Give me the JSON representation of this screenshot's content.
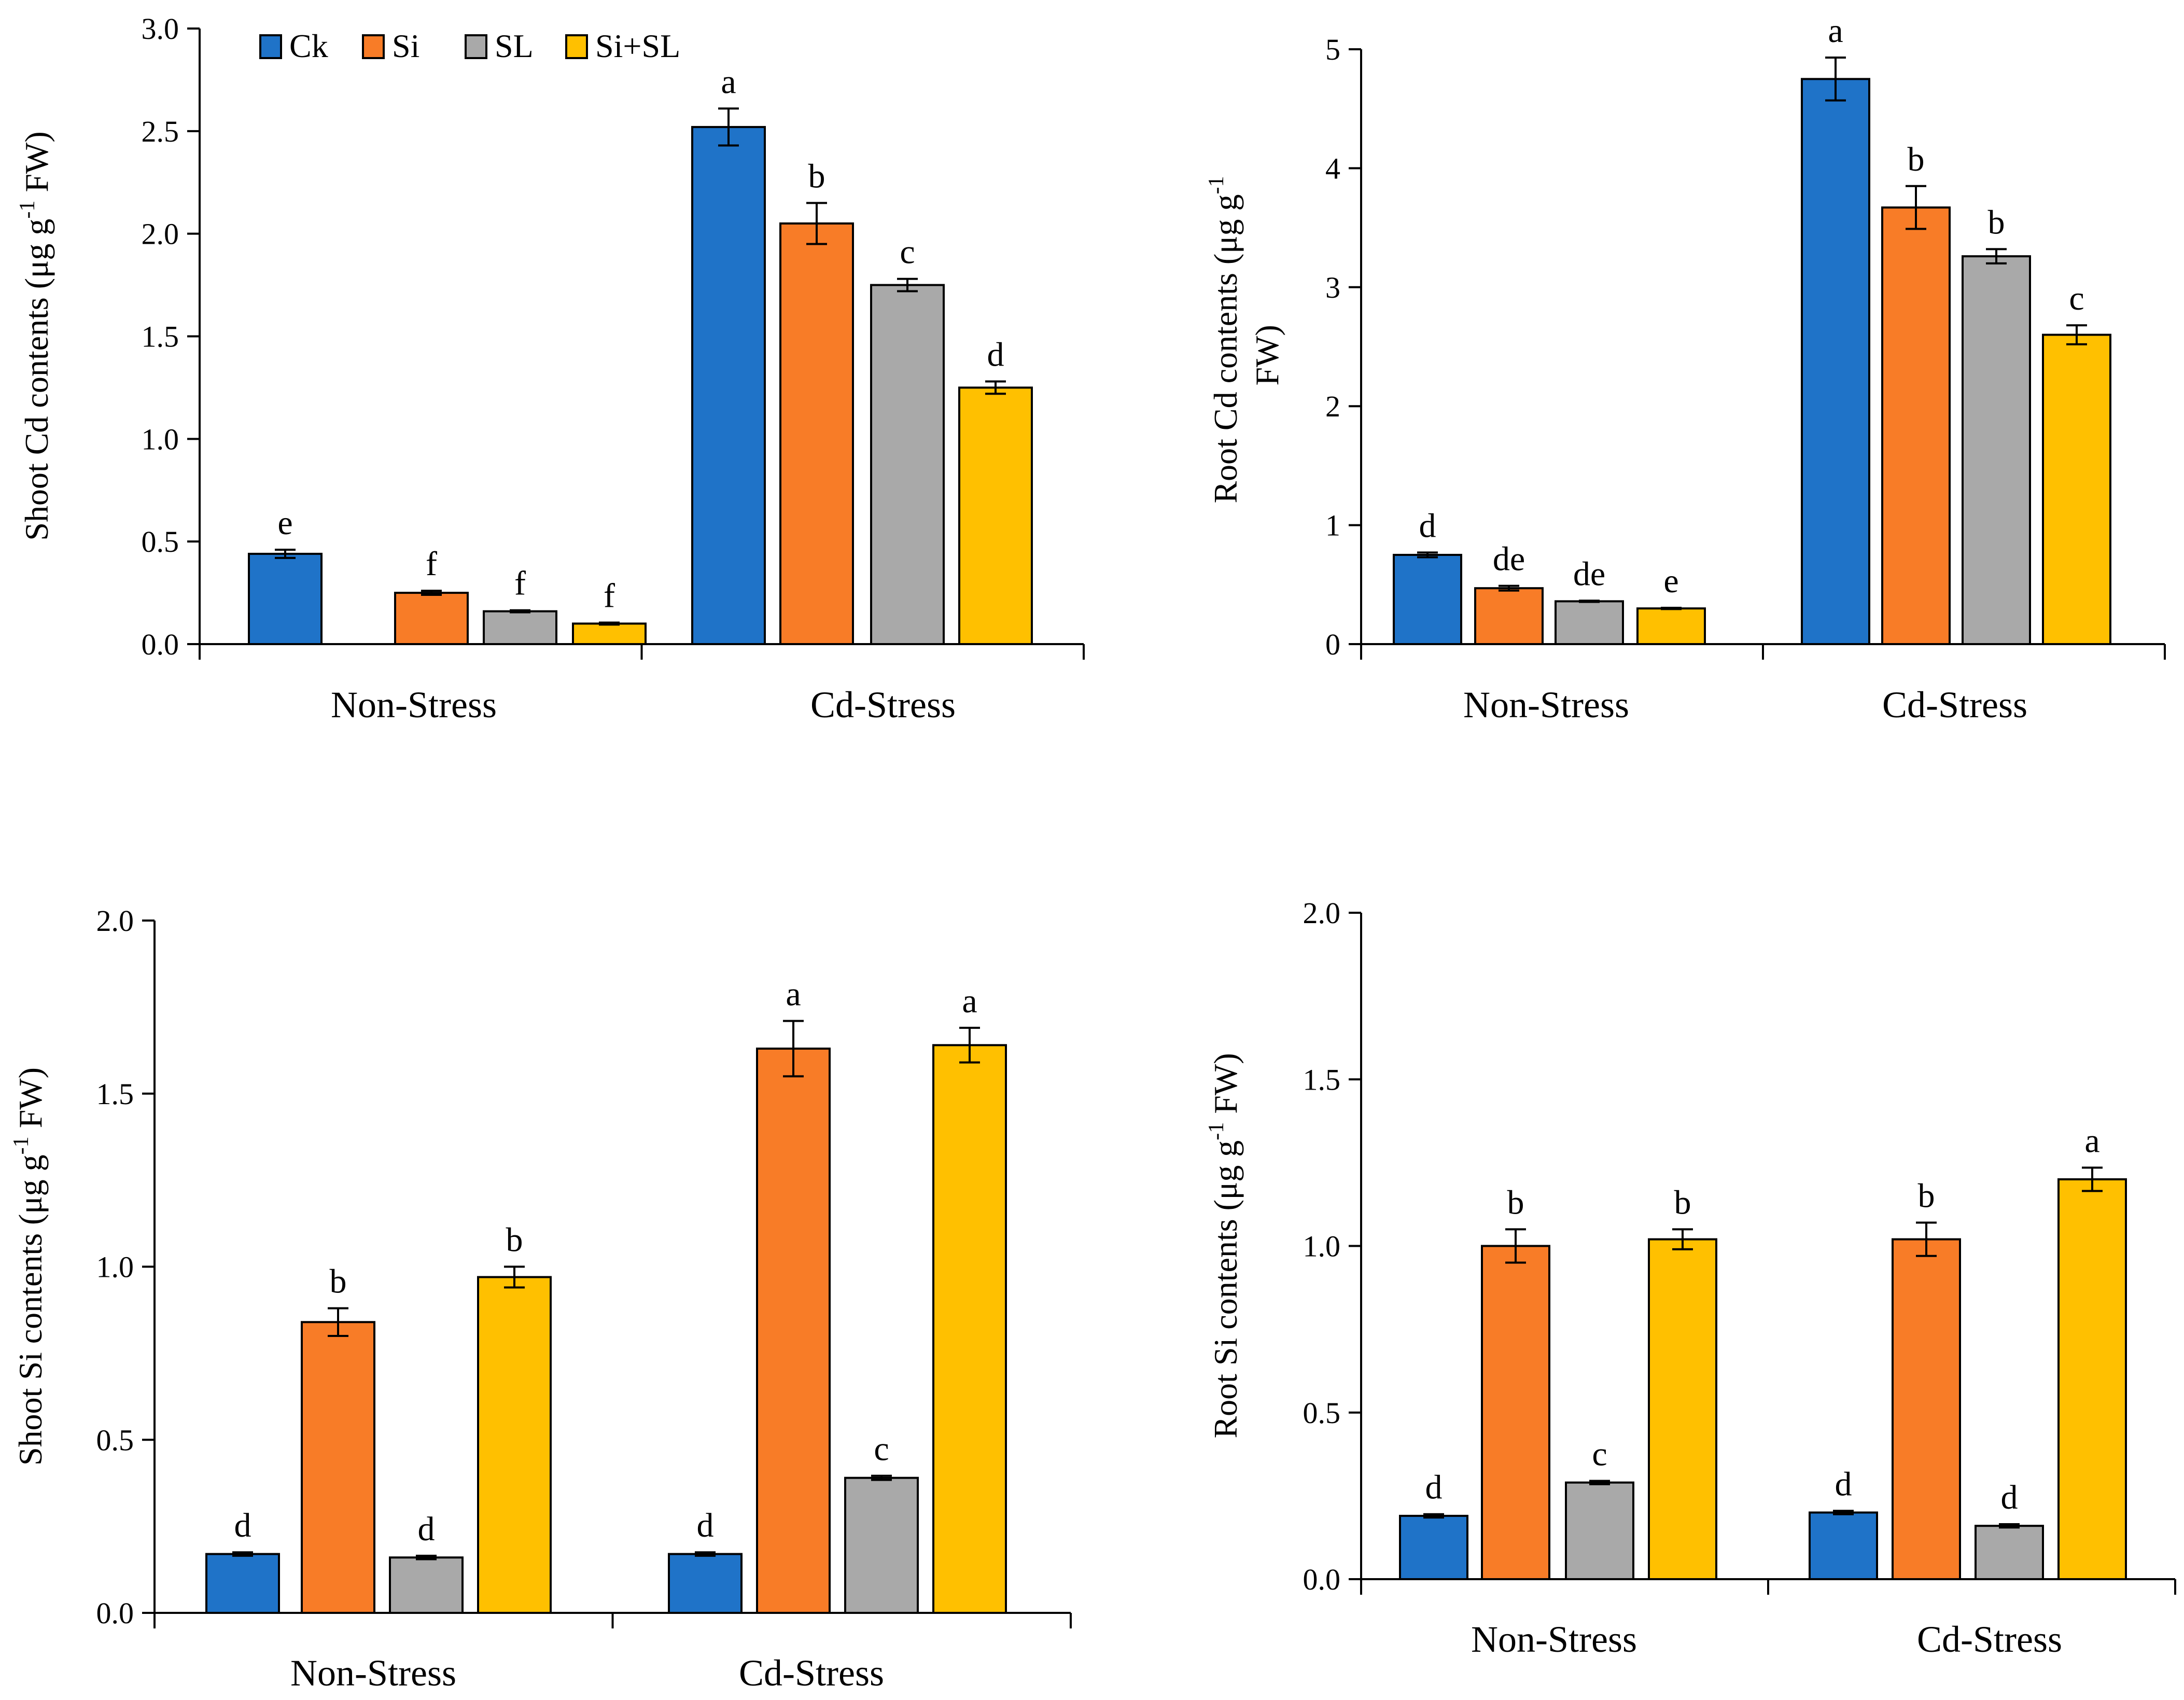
{
  "colors": {
    "Ck": "#1f73c8",
    "Si": "#f87c27",
    "SL": "#a9a9a9",
    "Si+SL": "#ffc000"
  },
  "legend": {
    "items": [
      {
        "label": "Ck",
        "color": "#1f73c8"
      },
      {
        "label": "Si",
        "color": "#f87c27"
      },
      {
        "label": "SL",
        "color": "#a9a9a9"
      },
      {
        "label": "Si+SL",
        "color": "#ffc000"
      }
    ]
  },
  "chart_data": [
    {
      "type": "bar",
      "id": "shoot-cd",
      "ylabel": {
        "main": "Shoot Cd contents (μg g",
        "sup": "-1",
        "tail": " FW)"
      },
      "ylim": [
        0,
        3.0
      ],
      "ticks": [
        "0.0",
        "0.5",
        "1.0",
        "1.5",
        "2.0",
        "2.5",
        "3.0"
      ],
      "categories": [
        "Non-Stress",
        "Cd-Stress"
      ],
      "legend": true,
      "series": [
        {
          "name": "Ck",
          "values": [
            0.44,
            2.52
          ],
          "errors": [
            0.02,
            0.09
          ],
          "letters": [
            "e",
            "a"
          ]
        },
        {
          "name": "Si",
          "values": [
            0.25,
            2.05
          ],
          "errors": [
            0.01,
            0.1
          ],
          "letters": [
            "f",
            "b"
          ]
        },
        {
          "name": "SL",
          "values": [
            0.16,
            1.75
          ],
          "errors": [
            0.005,
            0.03
          ],
          "letters": [
            "f",
            "c"
          ]
        },
        {
          "name": "Si+SL",
          "values": [
            0.1,
            1.25
          ],
          "errors": [
            0.005,
            0.03
          ],
          "letters": [
            "f",
            "d"
          ]
        }
      ]
    },
    {
      "type": "bar",
      "id": "root-cd",
      "ylabel": {
        "main": "Root Cd contents (μg g",
        "sup": "-1",
        "tail": "",
        "line2": "FW)"
      },
      "ylim": [
        0,
        5
      ],
      "ticks": [
        "0",
        "1",
        "2",
        "3",
        "4",
        "5"
      ],
      "categories": [
        "Non-Stress",
        "Cd-Stress"
      ],
      "legend": false,
      "series": [
        {
          "name": "Ck",
          "values": [
            0.75,
            4.75
          ],
          "errors": [
            0.02,
            0.18
          ],
          "letters": [
            "d",
            "a"
          ]
        },
        {
          "name": "Si",
          "values": [
            0.47,
            3.67
          ],
          "errors": [
            0.02,
            0.18
          ],
          "letters": [
            "de",
            "b"
          ]
        },
        {
          "name": "SL",
          "values": [
            0.36,
            3.26
          ],
          "errors": [
            0.005,
            0.06
          ],
          "letters": [
            "de",
            "b"
          ]
        },
        {
          "name": "Si+SL",
          "values": [
            0.3,
            2.6
          ],
          "errors": [
            0.005,
            0.08
          ],
          "letters": [
            "e",
            "c"
          ]
        }
      ]
    },
    {
      "type": "bar",
      "id": "shoot-si",
      "ylabel": {
        "main": "Shoot Si contents (μg g",
        "sup": "-1",
        "tail": " FW)"
      },
      "ylim": [
        0,
        2.0
      ],
      "ticks": [
        "0.0",
        "0.5",
        "1.0",
        "1.5",
        "2.0"
      ],
      "categories": [
        "Non-Stress",
        "Cd-Stress"
      ],
      "legend": false,
      "series": [
        {
          "name": "Ck",
          "values": [
            0.17,
            0.17
          ],
          "errors": [
            0.005,
            0.005
          ],
          "letters": [
            "d",
            "d"
          ]
        },
        {
          "name": "Si",
          "values": [
            0.84,
            1.63
          ],
          "errors": [
            0.04,
            0.08
          ],
          "letters": [
            "b",
            "a"
          ]
        },
        {
          "name": "SL",
          "values": [
            0.16,
            0.39
          ],
          "errors": [
            0.005,
            0.006
          ],
          "letters": [
            "d",
            "c"
          ]
        },
        {
          "name": "Si+SL",
          "values": [
            0.97,
            1.64
          ],
          "errors": [
            0.03,
            0.05
          ],
          "letters": [
            "b",
            "a"
          ]
        }
      ]
    },
    {
      "type": "bar",
      "id": "root-si",
      "ylabel": {
        "main": "Root Si contents (μg g",
        "sup": "-1",
        "tail": " FW)"
      },
      "ylim": [
        0,
        2.0
      ],
      "ticks": [
        "0.0",
        "0.5",
        "1.0",
        "1.5",
        "2.0"
      ],
      "categories": [
        "Non-Stress",
        "Cd-Stress"
      ],
      "legend": false,
      "series": [
        {
          "name": "Ck",
          "values": [
            0.19,
            0.2
          ],
          "errors": [
            0.005,
            0.005
          ],
          "letters": [
            "d",
            "d"
          ]
        },
        {
          "name": "Si",
          "values": [
            1.0,
            1.02
          ],
          "errors": [
            0.05,
            0.05
          ],
          "letters": [
            "b",
            "b"
          ]
        },
        {
          "name": "SL",
          "values": [
            0.29,
            0.16
          ],
          "errors": [
            0.005,
            0.005
          ],
          "letters": [
            "c",
            "d"
          ]
        },
        {
          "name": "Si+SL",
          "values": [
            1.02,
            1.2
          ],
          "errors": [
            0.03,
            0.035
          ],
          "letters": [
            "b",
            "a"
          ]
        }
      ]
    }
  ]
}
